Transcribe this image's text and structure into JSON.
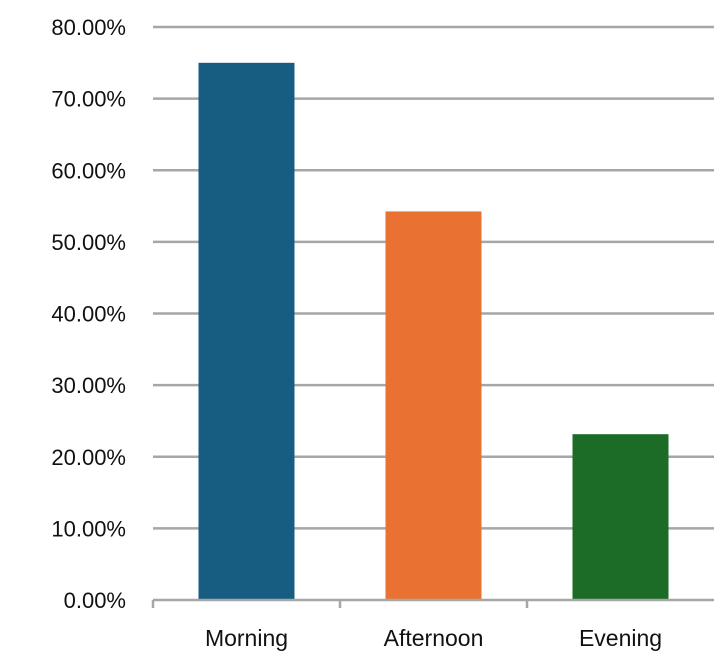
{
  "chart_data": {
    "type": "bar",
    "categories": [
      "Morning",
      "Afternoon",
      "Evening"
    ],
    "values": [
      0.75,
      0.5425,
      0.2315
    ],
    "colors": [
      "#175d82",
      "#e97132",
      "#1c6b27"
    ],
    "ylim": [
      0,
      0.8
    ],
    "yticks": [
      0,
      0.1,
      0.2,
      0.3,
      0.4,
      0.5,
      0.6,
      0.7,
      0.8
    ],
    "ytick_labels": [
      "0.00%",
      "10.00%",
      "20.00%",
      "30.00%",
      "40.00%",
      "50.00%",
      "60.00%",
      "70.00%",
      "80.00%"
    ],
    "grid": true,
    "legend": "none",
    "title": "",
    "xlabel": "",
    "ylabel": ""
  }
}
